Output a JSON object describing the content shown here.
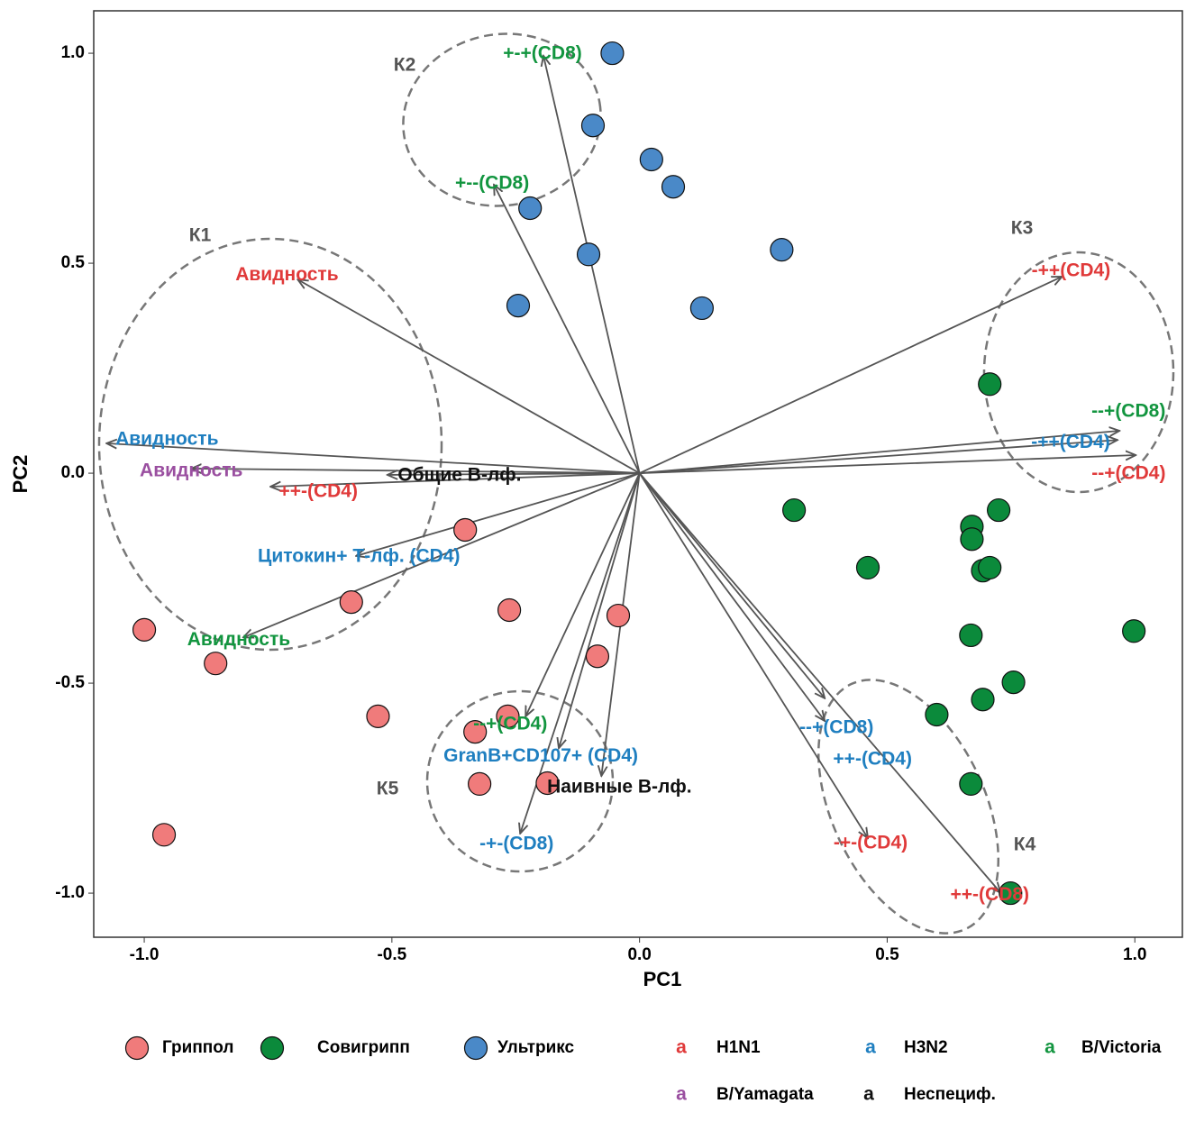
{
  "chart_data": {
    "type": "scatter",
    "x_label": "PC1",
    "y_label": "PC2",
    "xlim": [
      -1.102,
      1.096
    ],
    "ylim": [
      -1.105,
      1.101
    ],
    "xticks": [
      {
        "value": -1,
        "label": "-1.0"
      },
      {
        "value": -0.5,
        "label": "-0.5"
      },
      {
        "value": 0,
        "label": "0.0"
      },
      {
        "value": 0.5,
        "label": "0.5"
      },
      {
        "value": 1,
        "label": "1.0"
      }
    ],
    "yticks": [
      {
        "value": -1,
        "label": "-1.0"
      },
      {
        "value": -0.5,
        "label": "-0.5"
      },
      {
        "value": 0,
        "label": "0.0"
      },
      {
        "value": 0.5,
        "label": "0.5"
      },
      {
        "value": 1,
        "label": "1.0"
      }
    ],
    "series": [
      {
        "name": "Гриппол",
        "color": "#f07b7b",
        "x": [
          -1.0,
          -0.856,
          -0.582,
          -0.528,
          -0.352,
          -0.263,
          -0.043,
          -0.085,
          -0.266,
          -0.332,
          -0.323,
          -0.186,
          -0.96
        ],
        "values": [
          -0.373,
          -0.453,
          -0.307,
          -0.579,
          -0.135,
          -0.326,
          -0.339,
          -0.436,
          -0.579,
          -0.616,
          -0.74,
          -0.738,
          -0.861
        ]
      },
      {
        "name": "Совигрипп",
        "color": "#0b8a3b",
        "x": [
          0.707,
          0.312,
          0.461,
          0.671,
          0.671,
          0.725,
          0.693,
          0.707,
          0.669,
          0.998,
          0.755,
          0.693,
          0.6,
          0.669,
          0.749
        ],
        "values": [
          0.212,
          -0.088,
          -0.225,
          -0.127,
          -0.157,
          -0.088,
          -0.232,
          -0.225,
          -0.386,
          -0.376,
          -0.498,
          -0.539,
          -0.575,
          -0.74,
          -1.0
        ]
      },
      {
        "name": "Ультрикс",
        "color": "#4a89c8",
        "x": [
          -0.055,
          -0.094,
          0.024,
          0.068,
          -0.221,
          -0.103,
          0.287,
          -0.245,
          0.126
        ],
        "values": [
          1.0,
          0.828,
          0.747,
          0.682,
          0.631,
          0.521,
          0.532,
          0.399,
          0.393
        ]
      }
    ],
    "loadings": [
      {
        "label": "Авидность",
        "color": "#e03a3a",
        "x": -0.69,
        "y": 0.461
      },
      {
        "label": "Авидность",
        "color": "#1f7fc0",
        "x": -1.076,
        "y": 0.071
      },
      {
        "label": "Авидность",
        "color": "#9a4fa0",
        "x": -0.905,
        "y": 0.011
      },
      {
        "label": "Общие В-лф.",
        "color": "#111111",
        "x": -0.509,
        "y": -0.004
      },
      {
        "label": "++-(CD4)",
        "color": "#e03a3a",
        "x": -0.745,
        "y": -0.032
      },
      {
        "label": "Цитокин+ Т-лф. (CD4)",
        "color": "#1f7fc0",
        "x": -0.572,
        "y": -0.197
      },
      {
        "label": "Авидность",
        "color": "#12953f",
        "x": -0.8,
        "y": -0.391
      },
      {
        "label": "+-+(CD8)",
        "color": "#12953f",
        "x": -0.194,
        "y": 0.994
      },
      {
        "label": "+--(CD8)",
        "color": "#12953f",
        "x": -0.294,
        "y": 0.687
      },
      {
        "label": "-++(CD4)",
        "color": "#e03a3a",
        "x": 0.853,
        "y": 0.468
      },
      {
        "label": "--+(CD8)",
        "color": "#12953f",
        "x": 0.969,
        "y": 0.101
      },
      {
        "label": "-++(CD4)",
        "color": "#1f7fc0",
        "x": 0.965,
        "y": 0.079
      },
      {
        "label": "--+(CD4)",
        "color": "#e03a3a",
        "x": 1.002,
        "y": 0.043
      },
      {
        "label": "--+(CD8)",
        "color": "#1f7fc0",
        "x": 0.374,
        "y": -0.536
      },
      {
        "label": "++-(CD4)",
        "color": "#1f7fc0",
        "x": 0.374,
        "y": -0.59
      },
      {
        "label": "-+-(CD4)",
        "color": "#e03a3a",
        "x": 0.461,
        "y": -0.869
      },
      {
        "label": "++-(CD8)",
        "color": "#e03a3a",
        "x": 0.729,
        "y": -0.999
      },
      {
        "label": "--+(CD4)",
        "color": "#12953f",
        "x": -0.23,
        "y": -0.579
      },
      {
        "label": "GranB+CD107+ (CD4)",
        "color": "#1f7fc0",
        "x": -0.163,
        "y": -0.655
      },
      {
        "label": "Наивные В-лф.",
        "color": "#111111",
        "x": -0.077,
        "y": -0.721
      },
      {
        "label": "-+-(CD8)",
        "color": "#1f7fc0",
        "x": -0.241,
        "y": -0.858
      }
    ],
    "clusters": [
      "К1",
      "К2",
      "К3",
      "К4",
      "К5"
    ],
    "label_legend": {
      "key_glyph": "a",
      "items": [
        {
          "name": "H1N1",
          "color": "#e03a3a"
        },
        {
          "name": "H3N2",
          "color": "#1f7fc0"
        },
        {
          "name": "B/Victoria",
          "color": "#12953f"
        },
        {
          "name": "B/Yamagata",
          "color": "#9a4fa0"
        },
        {
          "name": "Неспециф.",
          "color": "#111111"
        }
      ]
    }
  }
}
